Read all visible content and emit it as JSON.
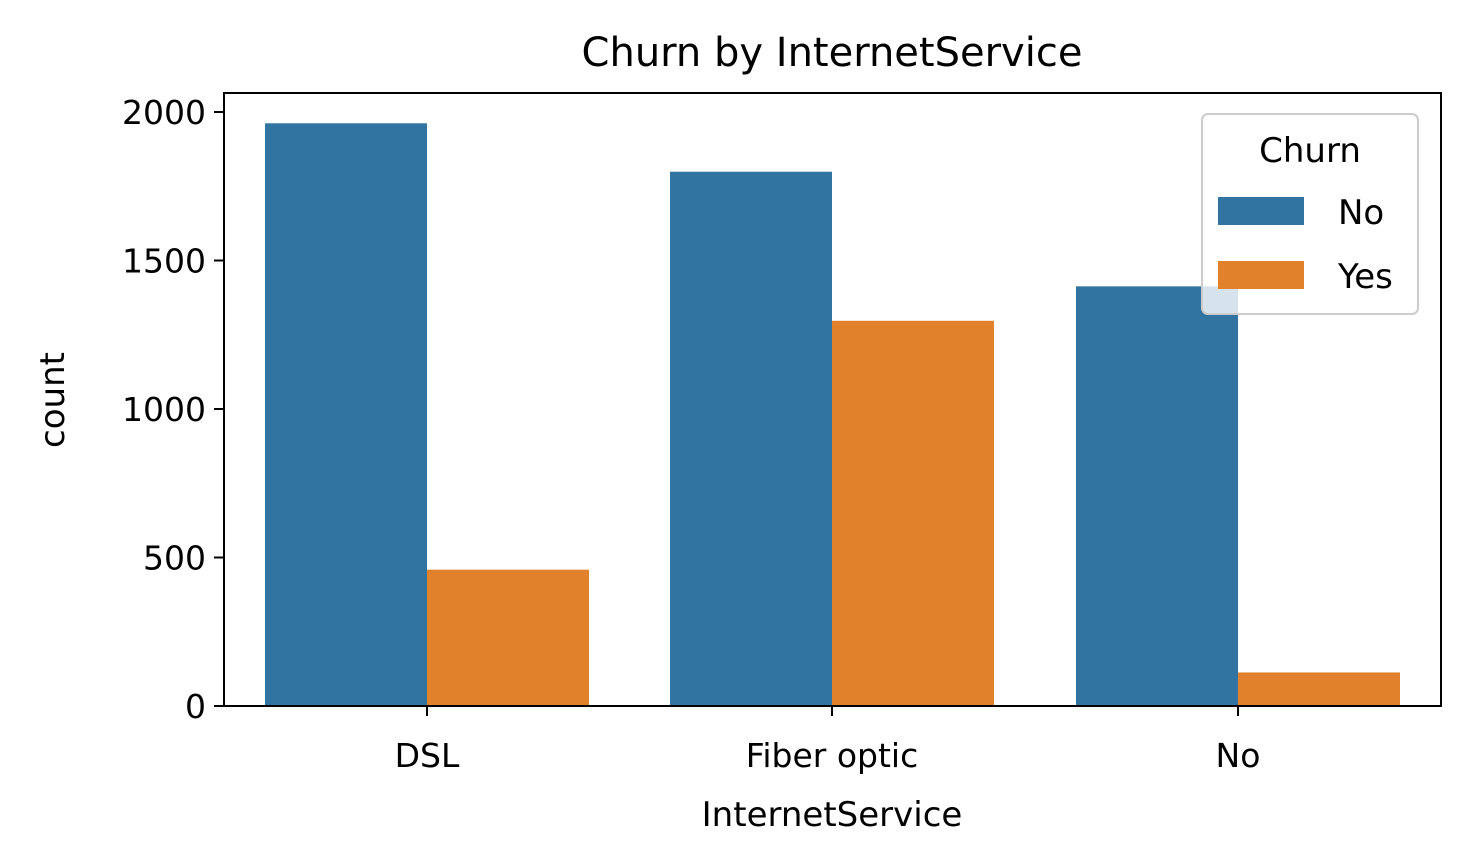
{
  "chart_data": {
    "type": "bar",
    "title": "Churn by InternetService",
    "xlabel": "InternetService",
    "ylabel": "count",
    "categories": [
      "DSL",
      "Fiber optic",
      "No"
    ],
    "series": [
      {
        "name": "No",
        "color": "#3274a1",
        "values": [
          1962,
          1799,
          1413
        ]
      },
      {
        "name": "Yes",
        "color": "#e1812c",
        "values": [
          459,
          1297,
          113
        ]
      }
    ],
    "yticks": [
      0,
      500,
      1000,
      1500,
      2000
    ],
    "ylim": [
      0,
      2060
    ],
    "grid": false,
    "legend": {
      "title": "Churn",
      "placement": "top-right"
    }
  }
}
